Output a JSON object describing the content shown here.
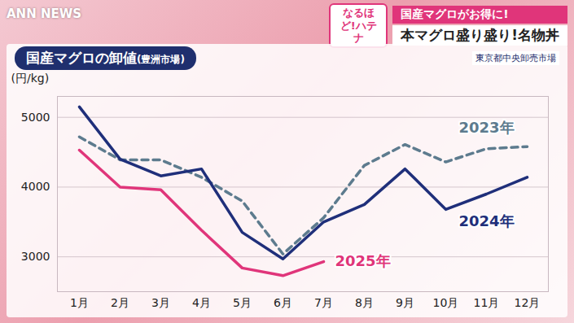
{
  "overlay": {
    "logo": "ANN NEWS",
    "corner": "なるほど!ハテナ",
    "headline": "国産マグロがお得に!",
    "subheadline": "本マグロ盛り盛り!名物丼"
  },
  "chart_data": {
    "type": "line",
    "title": "国産マグロの卸値",
    "subtitle": "(豊洲市場)",
    "source": "東京都中央卸売市場",
    "y_label": "(円/kg)",
    "categories": [
      "1月",
      "2月",
      "3月",
      "4月",
      "5月",
      "6月",
      "7月",
      "8月",
      "9月",
      "10月",
      "11月",
      "12月"
    ],
    "series": [
      {
        "name": "2023年",
        "color": "#5d7b8e",
        "line_style": "dashed",
        "values": [
          4720,
          4390,
          4390,
          4140,
          3800,
          3040,
          3560,
          4310,
          4610,
          4360,
          4550,
          4580
        ]
      },
      {
        "name": "2024年",
        "color": "#1f2f7a",
        "line_style": "solid",
        "values": [
          5150,
          4400,
          4160,
          4260,
          3350,
          2970,
          3500,
          3750,
          4260,
          3680,
          3900,
          4140
        ]
      },
      {
        "name": "2025年",
        "color": "#e0357a",
        "line_style": "solid",
        "values": [
          4530,
          4000,
          3960,
          3380,
          2840,
          2730,
          2930,
          null,
          null,
          null,
          null,
          null
        ]
      }
    ],
    "ylim": [
      2500,
      5300
    ],
    "yticks": [
      3000,
      4000,
      5000
    ],
    "grid": true
  }
}
